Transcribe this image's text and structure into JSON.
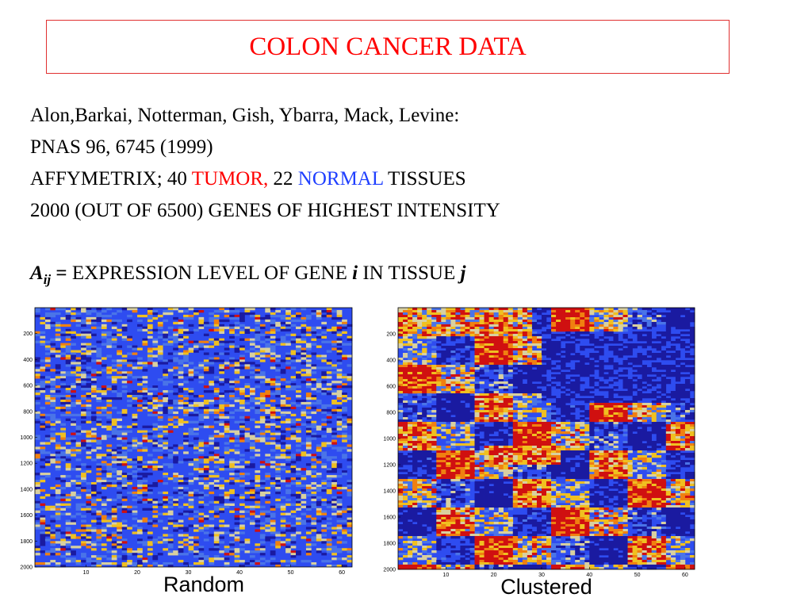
{
  "header": {
    "title": "COLON CANCER DATA"
  },
  "body": {
    "line1": "Alon,Barkai, Notterman, Gish, Ybarra, Mack, Levine:",
    "line2": "PNAS 96, 6745 (1999)",
    "line3": {
      "prefix": "AFFYMETRIX; 40 ",
      "tumor": "TUMOR,",
      "mid": " 22 ",
      "normal": "NORMAL",
      "suffix": " TISSUES"
    },
    "line4": "2000 (OUT OF 6500) GENES OF HIGHEST INTENSITY",
    "equation": {
      "symbol": "A",
      "sub": "ij",
      "equals": " = ",
      "text1": "EXPRESSION LEVEL OF GENE ",
      "i": "i",
      "text2": " IN TISSUE ",
      "j": "j"
    }
  },
  "chart_data": [
    {
      "type": "heatmap",
      "title": "",
      "caption": "Random",
      "rows": 2000,
      "columns": 62,
      "y_ticks": [
        "200",
        "400",
        "600",
        "800",
        "1000",
        "1200",
        "1400",
        "1600",
        "1800",
        "2000"
      ],
      "x_ticks": [
        "10",
        "20",
        "30",
        "40",
        "50",
        "60"
      ],
      "ylim": [
        0,
        2000
      ],
      "xlim": [
        0,
        62
      ],
      "colormap": [
        "#1a1aa0",
        "#2e4cf0",
        "#4a74e8",
        "#d8d0a0",
        "#f0c020",
        "#f08010",
        "#d01010"
      ]
    },
    {
      "type": "heatmap",
      "title": "",
      "caption": "Clustered",
      "rows": 2000,
      "columns": 62,
      "y_ticks": [
        "200",
        "400",
        "600",
        "800",
        "1000",
        "1200",
        "1400",
        "1600",
        "1800",
        "2000"
      ],
      "x_ticks": [
        "10",
        "20",
        "30",
        "40",
        "50",
        "60"
      ],
      "ylim": [
        0,
        2000
      ],
      "xlim": [
        0,
        62
      ],
      "colormap": [
        "#1a1aa0",
        "#2e4cf0",
        "#4a74e8",
        "#d8d0a0",
        "#f0c020",
        "#f08010",
        "#d01010"
      ]
    }
  ]
}
